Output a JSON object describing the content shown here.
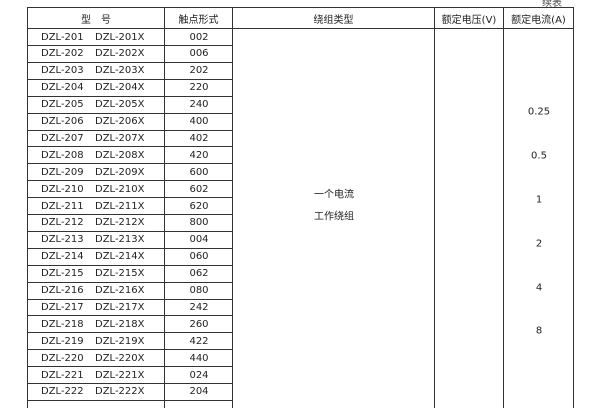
{
  "continued_label": "续表",
  "headers": {
    "model": "型　号",
    "contact": "触点形式",
    "winding": "绕组类型",
    "voltage": "额定电压(V)",
    "current": "额定电流(A)"
  },
  "rows": [
    [
      "DZL-201",
      "DZL-201X",
      "002"
    ],
    [
      "DZL-202",
      "DZL-202X",
      "006"
    ],
    [
      "DZL-203",
      "DZL-203X",
      "202"
    ],
    [
      "DZL-204",
      "DZL-204X",
      "220"
    ],
    [
      "DZL-205",
      "DZL-205X",
      "240"
    ],
    [
      "DZL-206",
      "DZL-206X",
      "400"
    ],
    [
      "DZL-207",
      "DZL-207X",
      "402"
    ],
    [
      "DZL-208",
      "DZL-208X",
      "420"
    ],
    [
      "DZL-209",
      "DZL-209X",
      "600"
    ],
    [
      "DZL-210",
      "DZL-210X",
      "602"
    ],
    [
      "DZL-211",
      "DZL-211X",
      "620"
    ],
    [
      "DZL-212",
      "DZL-212X",
      "800"
    ],
    [
      "DZL-213",
      "DZL-213X",
      "004"
    ],
    [
      "DZL-214",
      "DZL-214X",
      "060"
    ],
    [
      "DZL-215",
      "DZL-215X",
      "062"
    ],
    [
      "DZL-216",
      "DZL-216X",
      "080"
    ],
    [
      "DZL-217",
      "DZL-217X",
      "242"
    ],
    [
      "DZL-218",
      "DZL-218X",
      "260"
    ],
    [
      "DZL-219",
      "DZL-219X",
      "422"
    ],
    [
      "DZL-220",
      "DZL-220X",
      "440"
    ],
    [
      "DZL-221",
      "DZL-221X",
      "024"
    ],
    [
      "DZL-222",
      "DZL-222X",
      "204"
    ]
  ],
  "winding_type": [
    "一个电流",
    "工作绕组"
  ],
  "current_values": [
    "0.25",
    "0.5",
    "1",
    "2",
    "4",
    "8"
  ]
}
